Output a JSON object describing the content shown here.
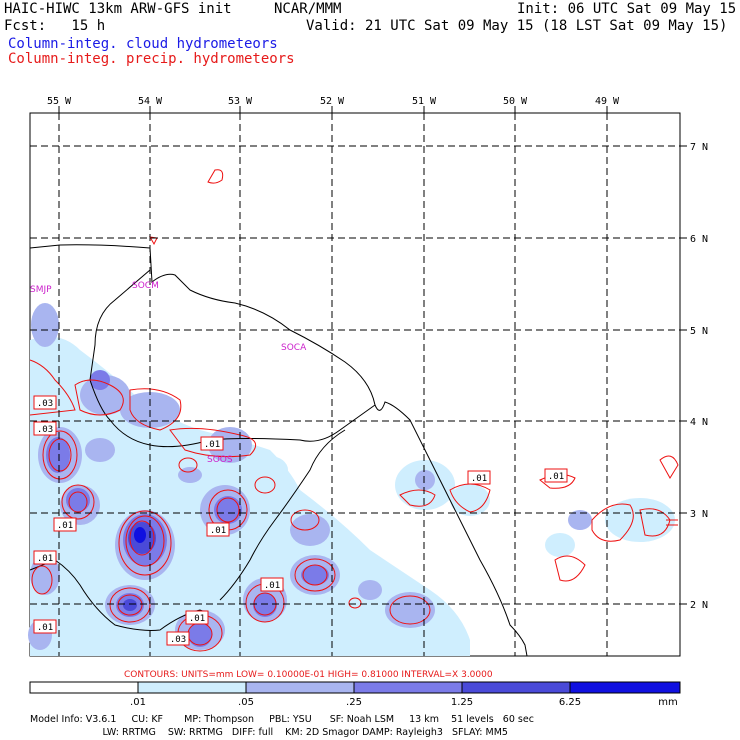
{
  "header": {
    "title_left": "HAIC-HIWC 13km ARW-GFS init",
    "org": "NCAR/MMM",
    "init": "Init: 06 UTC Sat 09 May 15",
    "fcst": "Fcst:   15 h",
    "valid": "Valid: 21 UTC Sat 09 May 15 (18 LST Sat 09 May 15)",
    "legend_cloud": "Column-integ. cloud hydrometeors",
    "legend_precip": "Column-integ. precip. hydrometeors"
  },
  "colors": {
    "cloud_title": "#1a1ae6",
    "precip_title": "#e61a1a",
    "station": "#cc22cc",
    "contour": "#ee1111",
    "shade": [
      "#ffffff",
      "#cfeefe",
      "#a9b5f0",
      "#7b7be8",
      "#4a4ad8",
      "#1010e0"
    ]
  },
  "map": {
    "lon_labels": [
      "55 W",
      "54 W",
      "53 W",
      "52 W",
      "51 W",
      "50 W",
      "49 W"
    ],
    "lat_labels": [
      "7 N",
      "6 N",
      "5 N",
      "4 N",
      "3 N",
      "2 N"
    ],
    "stations": [
      "SMJP",
      "SOCM",
      "SOCA",
      "SOOS"
    ],
    "contour_labels": [
      ".03",
      ".03",
      ".01",
      ".01",
      ".01",
      ".01",
      ".01",
      ".01",
      ".01",
      ".03",
      ".01",
      ".01"
    ]
  },
  "contours_line": "CONTOURS:  UNITS=mm  LOW= 0.10000E-01  HIGH= 0.81000      INTERVAL=X  3.0000",
  "colorbar": {
    "ticks": [
      ".01",
      ".05",
      ".25",
      "1.25",
      "6.25"
    ],
    "unit": "mm"
  },
  "model_info": {
    "line1": "Model Info: V3.6.1     CU: KF       MP: Thompson     PBL: YSU      SF: Noah LSM     13 km    51 levels   60 sec",
    "line2": "                        LW: RRTMG    SW: RRTMG   DIFF: full    KM: 2D Smagor DAMP: Rayleigh3   SFLAY: MM5"
  }
}
